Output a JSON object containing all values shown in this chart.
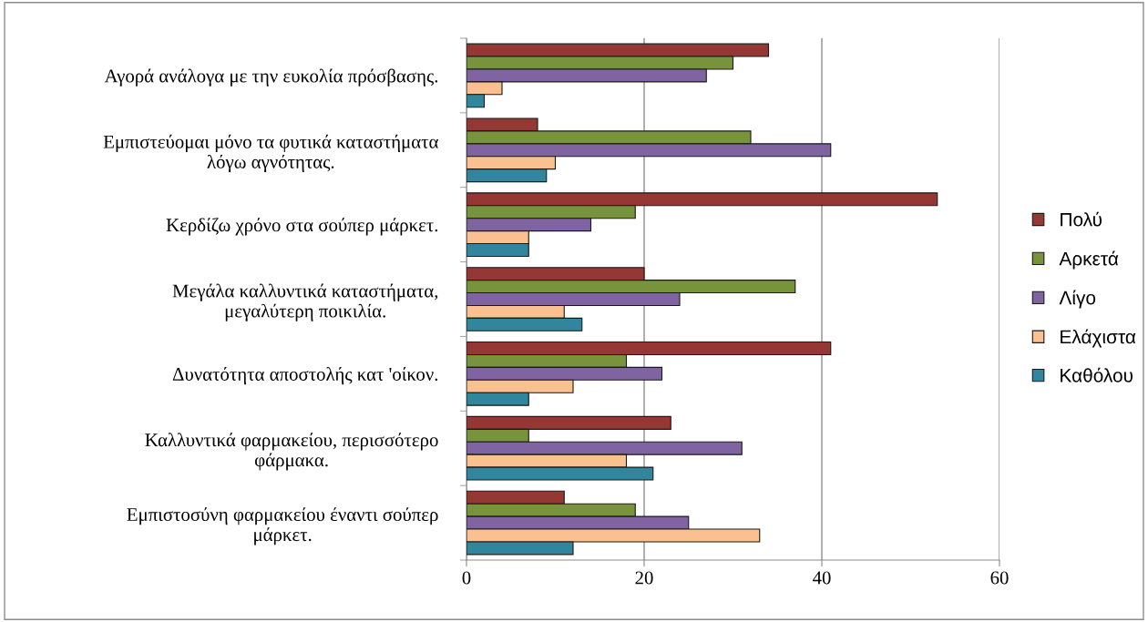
{
  "chart_data": {
    "type": "bar",
    "orientation": "horizontal",
    "categories": [
      "Αγορά ανάλογα με την ευκολία πρόσβασης.",
      "Εμπιστεύομαι μόνο τα φυτικά καταστήματα\nλόγω αγνότητας.",
      "Κερδίζω χρόνο στα σούπερ μάρκετ.",
      "Μεγάλα καλλυντικά καταστήματα,\nμεγαλύτερη ποικιλία.",
      "Δυνατότητα αποστολής κατ 'οίκον.",
      "Καλλυντικά φαρμακείου, περισσότερο\nφάρμακα.",
      "Εμπιστοσύνη φαρμακείου έναντι σούπερ\nμάρκετ."
    ],
    "series": [
      {
        "name": "Πολύ",
        "color": "#953735",
        "values": [
          34,
          8,
          53,
          20,
          41,
          23,
          11
        ]
      },
      {
        "name": "Αρκετά",
        "color": "#77933c",
        "values": [
          30,
          32,
          19,
          37,
          18,
          7,
          19
        ]
      },
      {
        "name": "Λίγο",
        "color": "#8064a2",
        "values": [
          27,
          41,
          14,
          24,
          22,
          31,
          25
        ]
      },
      {
        "name": "Ελάχιστα",
        "color": "#fac090",
        "values": [
          4,
          10,
          7,
          11,
          12,
          18,
          33
        ]
      },
      {
        "name": "Καθόλου",
        "color": "#31859c",
        "values": [
          2,
          9,
          7,
          13,
          7,
          21,
          12
        ]
      }
    ],
    "xlim": [
      0,
      60
    ],
    "xticks": [
      0,
      20,
      40,
      60
    ],
    "grid": "x",
    "legend": "right"
  }
}
